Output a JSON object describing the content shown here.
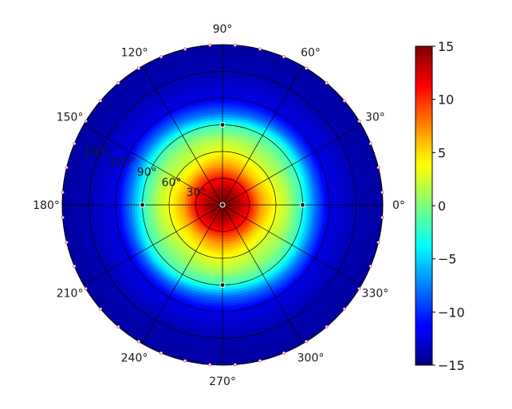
{
  "chart_data": {
    "type": "heatmap",
    "projection": "polar",
    "title": "",
    "angle_tick_labels": [
      "0°",
      "30°",
      "60°",
      "90°",
      "120°",
      "150°",
      "180°",
      "210°",
      "240°",
      "270°",
      "300°",
      "330°"
    ],
    "radial_tick_labels": [
      "30°",
      "60°",
      "90°",
      "120°",
      "150°"
    ],
    "radial_range": [
      0,
      180
    ],
    "colormap": "jet",
    "color_range": [
      -15,
      15
    ],
    "colorbar_tick_labels": [
      "15",
      "10",
      "5",
      "0",
      "−5",
      "−10",
      "−15"
    ],
    "colorbar_ticks": [
      15,
      10,
      5,
      0,
      -5,
      -10,
      -15
    ],
    "field_profile": {
      "theta_deg": [
        0,
        15,
        30,
        45,
        60,
        75,
        90,
        105,
        120,
        150,
        180
      ],
      "value": [
        15,
        14,
        11,
        6,
        3,
        1,
        -2,
        -8,
        -12,
        -13.5,
        -14
      ]
    },
    "markers": [
      {
        "theta_deg": 0,
        "r_deg": 0
      },
      {
        "theta_deg": 0,
        "r_deg": 90
      },
      {
        "theta_deg": 90,
        "r_deg": 90
      },
      {
        "theta_deg": 180,
        "r_deg": 90
      },
      {
        "theta_deg": 270,
        "r_deg": 90
      }
    ],
    "grid": true
  }
}
